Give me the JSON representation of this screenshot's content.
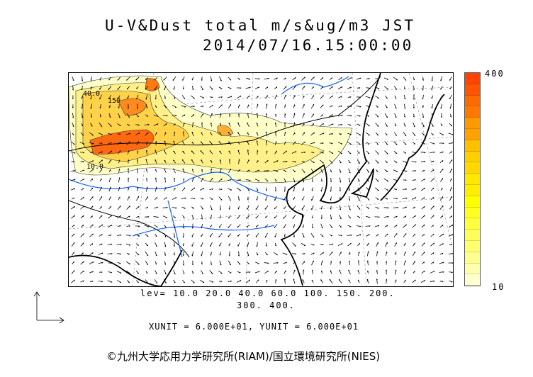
{
  "title": {
    "line1": "U-V&Dust total m/s&ug/m3 JST",
    "line2": "2014/07/16.15:00:00"
  },
  "colorbar": {
    "max_label": "400",
    "min_label": "10",
    "colors": [
      "#ff4500",
      "#ff5500",
      "#ff6a00",
      "#ff7800",
      "#ff9900",
      "#ffa200",
      "#ffc000",
      "#ffd000",
      "#ffd800",
      "#ffe800",
      "#ffee00",
      "#ffff00",
      "#ffff22",
      "#ffff40",
      "#ffff5a",
      "#ffff70",
      "#ffff90",
      "#ffffb0",
      "#ffffd0"
    ]
  },
  "levels": {
    "line1": "lev= 10.0 20.0 40.0 60.0 100. 150. 200.",
    "line2": "300. 400."
  },
  "units": "XUNIT = 6.000E+01, YUNIT = 6.000E+01",
  "copyright": "©九州大学応用力学研究所(RIAM)/国立環境研究所(NIES)",
  "contour_labels": [
    "40.0",
    "150",
    "10.0"
  ]
}
